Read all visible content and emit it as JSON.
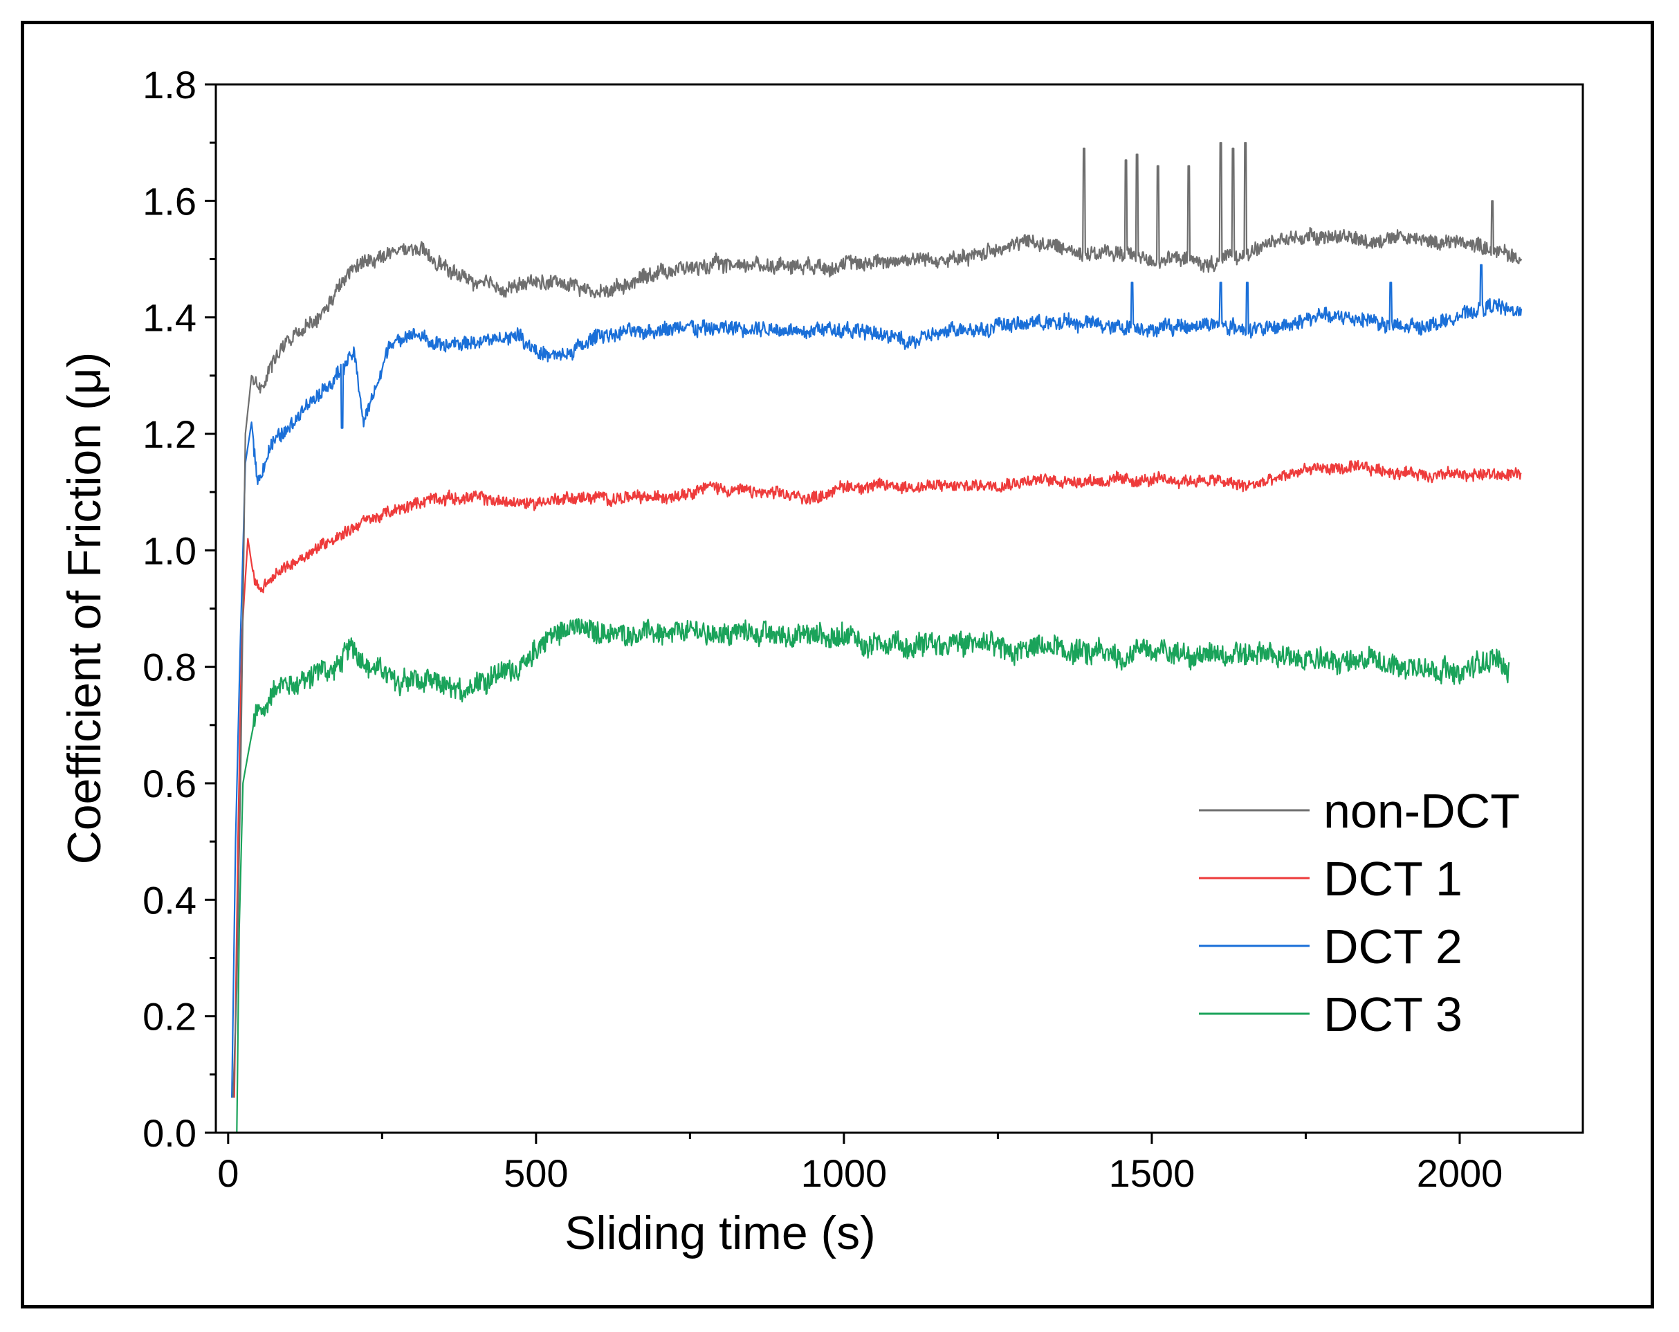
{
  "chart_data": {
    "type": "line",
    "title": "",
    "xlabel": "Sliding time (s)",
    "ylabel": "Coefficient of Friction (μ)",
    "xlim": [
      -20,
      2200
    ],
    "ylim": [
      0.0,
      1.8
    ],
    "xticks": [
      0,
      500,
      1000,
      1500,
      2000
    ],
    "xtick_labels": [
      "0",
      "500",
      "1000",
      "1500",
      "2000"
    ],
    "xminor": [
      250,
      750,
      1250,
      1750
    ],
    "yticks": [
      0.0,
      0.2,
      0.4,
      0.6,
      0.8,
      1.0,
      1.2,
      1.4,
      1.6,
      1.8
    ],
    "ytick_labels": [
      "0.0",
      "0.2",
      "0.4",
      "0.6",
      "0.8",
      "1.0",
      "1.2",
      "1.4",
      "1.6",
      "1.8"
    ],
    "legend_position": "bottom-right",
    "series": [
      {
        "name": "non-DCT",
        "color": "#6e6e6e",
        "noise": 0.011,
        "points": [
          [
            8,
            0.06
          ],
          [
            14,
            0.25
          ],
          [
            20,
            0.6
          ],
          [
            28,
            1.2
          ],
          [
            38,
            1.3
          ],
          [
            55,
            1.28
          ],
          [
            75,
            1.33
          ],
          [
            100,
            1.36
          ],
          [
            150,
            1.4
          ],
          [
            180,
            1.45
          ],
          [
            200,
            1.48
          ],
          [
            230,
            1.5
          ],
          [
            270,
            1.51
          ],
          [
            300,
            1.52
          ],
          [
            330,
            1.5
          ],
          [
            360,
            1.48
          ],
          [
            400,
            1.46
          ],
          [
            450,
            1.45
          ],
          [
            500,
            1.46
          ],
          [
            550,
            1.46
          ],
          [
            600,
            1.44
          ],
          [
            650,
            1.46
          ],
          [
            700,
            1.48
          ],
          [
            800,
            1.49
          ],
          [
            900,
            1.49
          ],
          [
            1000,
            1.49
          ],
          [
            1100,
            1.5
          ],
          [
            1200,
            1.5
          ],
          [
            1250,
            1.52
          ],
          [
            1300,
            1.53
          ],
          [
            1350,
            1.52
          ],
          [
            1400,
            1.51
          ],
          [
            1450,
            1.51
          ],
          [
            1500,
            1.5
          ],
          [
            1550,
            1.5
          ],
          [
            1600,
            1.49
          ],
          [
            1650,
            1.51
          ],
          [
            1700,
            1.53
          ],
          [
            1750,
            1.54
          ],
          [
            1800,
            1.54
          ],
          [
            1850,
            1.53
          ],
          [
            1900,
            1.54
          ],
          [
            1950,
            1.53
          ],
          [
            2000,
            1.53
          ],
          [
            2050,
            1.52
          ],
          [
            2100,
            1.5
          ]
        ],
        "spikes": [
          [
            1390,
            1.69
          ],
          [
            1458,
            1.67
          ],
          [
            1476,
            1.68
          ],
          [
            1510,
            1.66
          ],
          [
            1560,
            1.66
          ],
          [
            1612,
            1.7
          ],
          [
            1632,
            1.69
          ],
          [
            1652,
            1.7
          ],
          [
            2053,
            1.6
          ]
        ]
      },
      {
        "name": "DCT 1",
        "color": "#ee3b3b",
        "noise": 0.009,
        "points": [
          [
            10,
            0.06
          ],
          [
            16,
            0.5
          ],
          [
            22,
            0.85
          ],
          [
            32,
            1.02
          ],
          [
            42,
            0.95
          ],
          [
            55,
            0.93
          ],
          [
            80,
            0.96
          ],
          [
            120,
            0.99
          ],
          [
            170,
            1.02
          ],
          [
            220,
            1.05
          ],
          [
            280,
            1.07
          ],
          [
            330,
            1.09
          ],
          [
            400,
            1.09
          ],
          [
            480,
            1.08
          ],
          [
            550,
            1.09
          ],
          [
            620,
            1.09
          ],
          [
            700,
            1.09
          ],
          [
            780,
            1.11
          ],
          [
            850,
            1.1
          ],
          [
            950,
            1.09
          ],
          [
            1000,
            1.11
          ],
          [
            1100,
            1.11
          ],
          [
            1200,
            1.11
          ],
          [
            1300,
            1.12
          ],
          [
            1400,
            1.12
          ],
          [
            1500,
            1.12
          ],
          [
            1600,
            1.12
          ],
          [
            1650,
            1.11
          ],
          [
            1700,
            1.12
          ],
          [
            1750,
            1.14
          ],
          [
            1850,
            1.14
          ],
          [
            1950,
            1.13
          ],
          [
            2050,
            1.13
          ],
          [
            2100,
            1.13
          ]
        ],
        "spikes": []
      },
      {
        "name": "DCT 2",
        "color": "#1a6fd8",
        "noise": 0.011,
        "points": [
          [
            6,
            0.06
          ],
          [
            12,
            0.5
          ],
          [
            20,
            0.85
          ],
          [
            28,
            1.15
          ],
          [
            38,
            1.22
          ],
          [
            48,
            1.12
          ],
          [
            70,
            1.18
          ],
          [
            120,
            1.24
          ],
          [
            170,
            1.29
          ],
          [
            205,
            1.34
          ],
          [
            220,
            1.22
          ],
          [
            240,
            1.28
          ],
          [
            260,
            1.35
          ],
          [
            300,
            1.37
          ],
          [
            350,
            1.35
          ],
          [
            420,
            1.36
          ],
          [
            470,
            1.37
          ],
          [
            520,
            1.33
          ],
          [
            560,
            1.34
          ],
          [
            600,
            1.37
          ],
          [
            700,
            1.38
          ],
          [
            800,
            1.38
          ],
          [
            900,
            1.38
          ],
          [
            1000,
            1.38
          ],
          [
            1100,
            1.36
          ],
          [
            1200,
            1.38
          ],
          [
            1300,
            1.39
          ],
          [
            1400,
            1.39
          ],
          [
            1500,
            1.38
          ],
          [
            1600,
            1.39
          ],
          [
            1650,
            1.38
          ],
          [
            1700,
            1.38
          ],
          [
            1750,
            1.4
          ],
          [
            1850,
            1.4
          ],
          [
            1900,
            1.38
          ],
          [
            1950,
            1.39
          ],
          [
            2000,
            1.4
          ],
          [
            2050,
            1.42
          ],
          [
            2100,
            1.41
          ]
        ],
        "spikes": [
          [
            185,
            1.21
          ],
          [
            1468,
            1.46
          ],
          [
            1612,
            1.46
          ],
          [
            1655,
            1.46
          ],
          [
            1888,
            1.46
          ],
          [
            2035,
            1.49
          ]
        ]
      },
      {
        "name": "DCT 3",
        "color": "#1aa35a",
        "noise": 0.017,
        "points": [
          [
            14,
            0.0
          ],
          [
            18,
            0.35
          ],
          [
            24,
            0.6
          ],
          [
            34,
            0.66
          ],
          [
            45,
            0.72
          ],
          [
            80,
            0.76
          ],
          [
            130,
            0.78
          ],
          [
            180,
            0.8
          ],
          [
            200,
            0.84
          ],
          [
            230,
            0.8
          ],
          [
            280,
            0.78
          ],
          [
            330,
            0.77
          ],
          [
            380,
            0.76
          ],
          [
            430,
            0.79
          ],
          [
            480,
            0.8
          ],
          [
            520,
            0.85
          ],
          [
            560,
            0.87
          ],
          [
            600,
            0.86
          ],
          [
            650,
            0.86
          ],
          [
            700,
            0.86
          ],
          [
            760,
            0.86
          ],
          [
            850,
            0.86
          ],
          [
            950,
            0.85
          ],
          [
            1000,
            0.85
          ],
          [
            1050,
            0.84
          ],
          [
            1100,
            0.83
          ],
          [
            1150,
            0.84
          ],
          [
            1200,
            0.84
          ],
          [
            1250,
            0.83
          ],
          [
            1300,
            0.83
          ],
          [
            1350,
            0.83
          ],
          [
            1400,
            0.82
          ],
          [
            1450,
            0.82
          ],
          [
            1500,
            0.83
          ],
          [
            1550,
            0.82
          ],
          [
            1600,
            0.82
          ],
          [
            1650,
            0.82
          ],
          [
            1700,
            0.82
          ],
          [
            1750,
            0.81
          ],
          [
            1800,
            0.81
          ],
          [
            1850,
            0.81
          ],
          [
            1900,
            0.8
          ],
          [
            1950,
            0.8
          ],
          [
            2000,
            0.79
          ],
          [
            2050,
            0.81
          ],
          [
            2080,
            0.8
          ]
        ],
        "spikes": []
      }
    ]
  }
}
